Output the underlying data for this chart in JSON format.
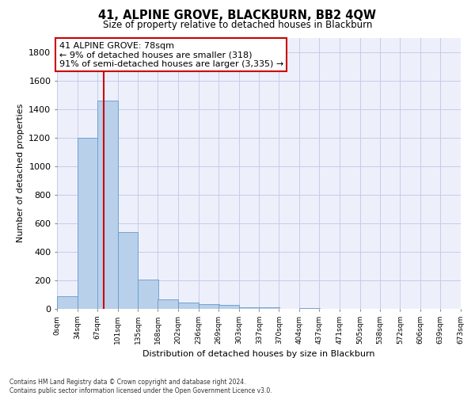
{
  "title": "41, ALPINE GROVE, BLACKBURN, BB2 4QW",
  "subtitle": "Size of property relative to detached houses in Blackburn",
  "xlabel": "Distribution of detached houses by size in Blackburn",
  "ylabel": "Number of detached properties",
  "bin_labels": [
    "0sqm",
    "34sqm",
    "67sqm",
    "101sqm",
    "135sqm",
    "168sqm",
    "202sqm",
    "236sqm",
    "269sqm",
    "303sqm",
    "337sqm",
    "370sqm",
    "404sqm",
    "437sqm",
    "471sqm",
    "505sqm",
    "538sqm",
    "572sqm",
    "606sqm",
    "639sqm",
    "673sqm"
  ],
  "bin_edges": [
    0,
    34,
    67,
    101,
    135,
    168,
    202,
    236,
    269,
    303,
    337,
    370,
    404,
    437,
    471,
    505,
    538,
    572,
    606,
    639,
    673
  ],
  "bar_heights": [
    90,
    1200,
    1460,
    540,
    205,
    65,
    47,
    35,
    28,
    12,
    10,
    0,
    8,
    0,
    0,
    0,
    0,
    0,
    0,
    0
  ],
  "bar_color": "#b8d0ea",
  "bar_edge_color": "#6699cc",
  "property_size": 78,
  "red_line_color": "#cc0000",
  "annotation_line1": "41 ALPINE GROVE: 78sqm",
  "annotation_line2": "← 9% of detached houses are smaller (318)",
  "annotation_line3": "91% of semi-detached houses are larger (3,335) →",
  "annotation_box_color": "#ffffff",
  "annotation_box_edge": "#cc0000",
  "ylim": [
    0,
    1900
  ],
  "yticks": [
    0,
    200,
    400,
    600,
    800,
    1000,
    1200,
    1400,
    1600,
    1800
  ],
  "footer": "Contains HM Land Registry data © Crown copyright and database right 2024.\nContains public sector information licensed under the Open Government Licence v3.0.",
  "bg_color": "#edf0fb",
  "grid_color": "#c5cce8"
}
